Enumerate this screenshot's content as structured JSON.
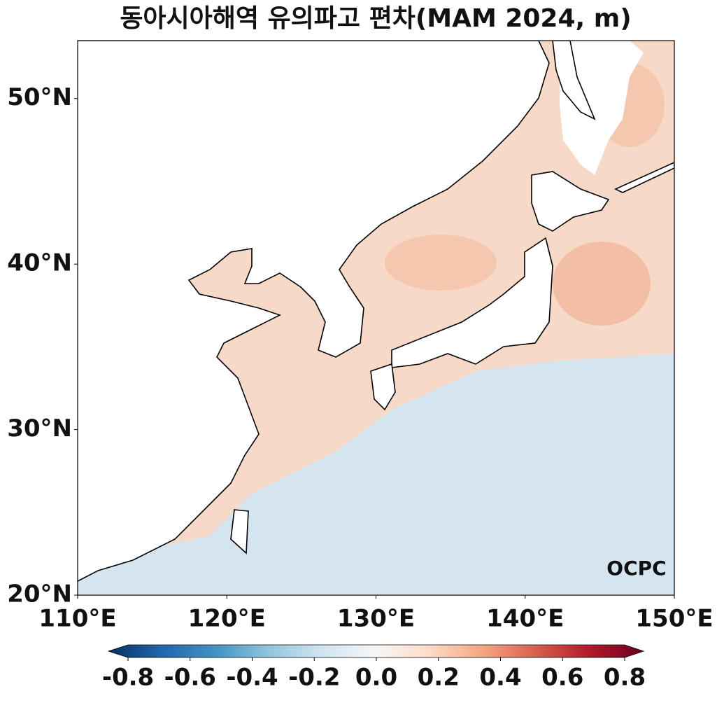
{
  "title": "동아시아해역 유의파고 편차(MAM 2024, m)",
  "map": {
    "lon_range": [
      110,
      150
    ],
    "lat_range": [
      20,
      53.5
    ],
    "lon_ticks": [
      {
        "value": 110,
        "label": "110°E"
      },
      {
        "value": 120,
        "label": "120°E"
      },
      {
        "value": 130,
        "label": "130°E"
      },
      {
        "value": 140,
        "label": "140°E"
      },
      {
        "value": 150,
        "label": "150°E"
      }
    ],
    "lat_ticks": [
      {
        "value": 20,
        "label": "20°N"
      },
      {
        "value": 30,
        "label": "30°N"
      },
      {
        "value": 40,
        "label": "40°N"
      },
      {
        "value": 50,
        "label": "50°N"
      }
    ]
  },
  "colorbar": {
    "range": [
      -0.8,
      0.8
    ],
    "ticks": [
      -0.8,
      -0.6,
      -0.4,
      -0.2,
      {
        "value": 0,
        "label": "0.0"
      },
      0.2,
      0.4,
      0.6,
      0.8
    ],
    "colors": [
      "#053061",
      "#2166ac",
      "#4393c3",
      "#92c5de",
      "#d1e5f0",
      "#f7f7f7",
      "#fddbc7",
      "#f4a582",
      "#d6604d",
      "#b2182b",
      "#67001f"
    ]
  },
  "logo": "OCPC"
}
